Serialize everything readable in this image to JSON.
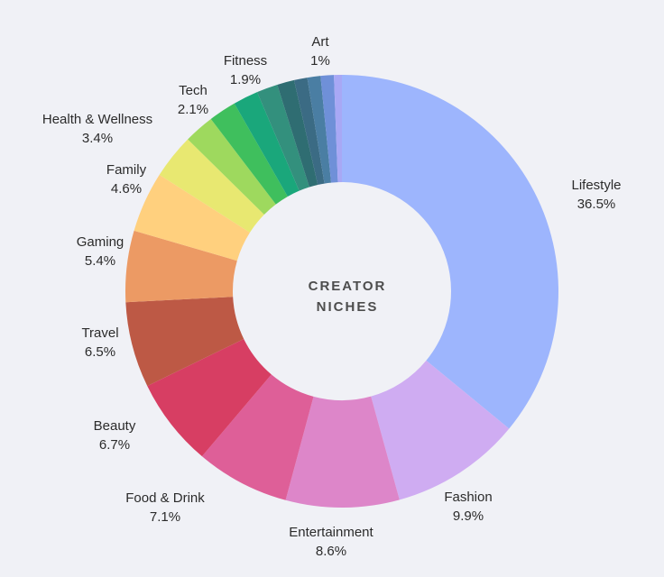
{
  "chart_data": {
    "type": "pie",
    "donut": true,
    "center_label": [
      "CREATOR",
      "NICHES"
    ],
    "slices": [
      {
        "label": "Lifestyle",
        "value": 36.5,
        "value_label": "36.5%",
        "color": "#9db5fd"
      },
      {
        "label": "Fashion",
        "value": 9.9,
        "value_label": "9.9%",
        "color": "#cfacf2"
      },
      {
        "label": "Entertainment",
        "value": 8.6,
        "value_label": "8.6%",
        "color": "#dd86c9"
      },
      {
        "label": "Food & Drink",
        "value": 7.1,
        "value_label": "7.1%",
        "color": "#de5f98"
      },
      {
        "label": "Beauty",
        "value": 6.7,
        "value_label": "6.7%",
        "color": "#d73e63"
      },
      {
        "label": "Travel",
        "value": 6.5,
        "value_label": "6.5%",
        "color": "#bd5945"
      },
      {
        "label": "Gaming",
        "value": 5.4,
        "value_label": "5.4%",
        "color": "#ec9a64"
      },
      {
        "label": "Family",
        "value": 4.6,
        "value_label": "4.6%",
        "color": "#ffd07e"
      },
      {
        "label": "Health & Wellness",
        "value": 3.4,
        "value_label": "3.4%",
        "color": "#e8e871"
      },
      {
        "value": 2.3,
        "color": "#9ed95e"
      },
      {
        "label": "Tech",
        "value": 2.1,
        "value_label": "2.1%",
        "color": "#3fbf5d"
      },
      {
        "label": "Fitness",
        "value": 1.9,
        "value_label": "1.9%",
        "color": "#1aa77b"
      },
      {
        "value": 1.6,
        "color": "#33907d"
      },
      {
        "value": 1.3,
        "color": "#2f6d72"
      },
      {
        "value": 1.0,
        "color": "#3b6b84"
      },
      {
        "value": 1.0,
        "color": "#4a7ea3"
      },
      {
        "label": "Art",
        "value": 1.0,
        "value_label": "1%",
        "color": "#6f90d8"
      },
      {
        "value": 0.6,
        "color": "#a8a8f5"
      }
    ]
  }
}
